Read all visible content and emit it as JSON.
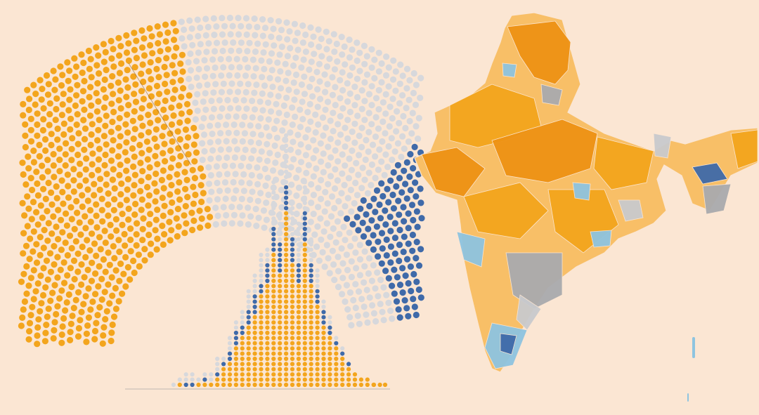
{
  "colors": {
    "background": "#fbe6d3",
    "orange": "#f3a51d",
    "orange_light": "#f8bf67",
    "orange_dark": "#ee9214",
    "blue": "#3f6aa9",
    "blue_light": "#8ec4e0",
    "grey_dot": "#d7d8dc",
    "grey_map": "#a9aaae",
    "grey_map_light": "#c9cacd"
  },
  "parliament": {
    "shares": {
      "orange": 0.53,
      "grey": 0.27,
      "blue": 0.2
    }
  },
  "histogram": {
    "stacks": [
      [
        0,
        0,
        0
      ],
      [
        0,
        0,
        1
      ],
      [
        1,
        0,
        1
      ],
      [
        0,
        1,
        2
      ],
      [
        0,
        1,
        2
      ],
      [
        1,
        0,
        1
      ],
      [
        1,
        1,
        1
      ],
      [
        1,
        0,
        2
      ],
      [
        2,
        1,
        3
      ],
      [
        4,
        1,
        1
      ],
      [
        5,
        2,
        3
      ],
      [
        8,
        3,
        2
      ],
      [
        10,
        2,
        3
      ],
      [
        12,
        3,
        4
      ],
      [
        14,
        4,
        4
      ],
      [
        18,
        2,
        6
      ],
      [
        20,
        4,
        3
      ],
      [
        26,
        5,
        9
      ],
      [
        22,
        6,
        6
      ],
      [
        34,
        5,
        10
      ],
      [
        24,
        5,
        7
      ],
      [
        20,
        4,
        8
      ],
      [
        28,
        6,
        6
      ],
      [
        20,
        4,
        5
      ],
      [
        16,
        3,
        4
      ],
      [
        12,
        3,
        2
      ],
      [
        10,
        2,
        2
      ],
      [
        8,
        1,
        1
      ],
      [
        6,
        1,
        1
      ],
      [
        4,
        1,
        0
      ],
      [
        3,
        0,
        0
      ],
      [
        2,
        0,
        0
      ],
      [
        2,
        0,
        0
      ],
      [
        1,
        0,
        0
      ],
      [
        1,
        0,
        0
      ]
    ]
  },
  "icons": {
    "parliament": "hemicycle-seats",
    "histogram": "dot-histogram",
    "map": "india-constituency-map"
  }
}
